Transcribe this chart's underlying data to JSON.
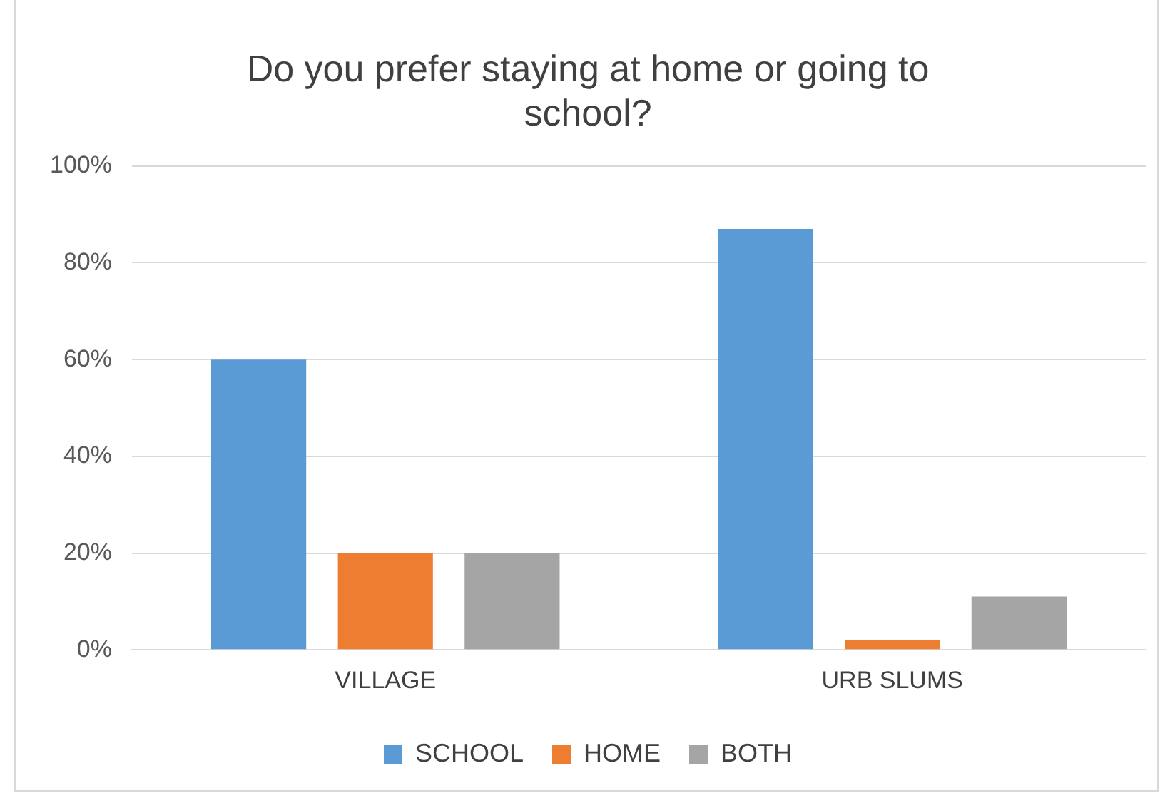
{
  "chart_data": {
    "type": "bar",
    "title": "Do you prefer staying at home or going to school?",
    "categories": [
      "VILLAGE",
      "URB SLUMS"
    ],
    "series": [
      {
        "name": "SCHOOL",
        "color": "#5b9bd5",
        "values": [
          60,
          87
        ]
      },
      {
        "name": "HOME",
        "color": "#ed7d31",
        "values": [
          20,
          2
        ]
      },
      {
        "name": "BOTH",
        "color": "#a5a5a5",
        "values": [
          20,
          11
        ]
      }
    ],
    "ylim": [
      0,
      100
    ],
    "yticks": [
      {
        "value": 0,
        "label": "0%"
      },
      {
        "value": 20,
        "label": "20%"
      },
      {
        "value": 40,
        "label": "40%"
      },
      {
        "value": 60,
        "label": "60%"
      },
      {
        "value": 80,
        "label": "80%"
      },
      {
        "value": 100,
        "label": "100%"
      }
    ],
    "grid": "y",
    "legend": "bottom"
  }
}
